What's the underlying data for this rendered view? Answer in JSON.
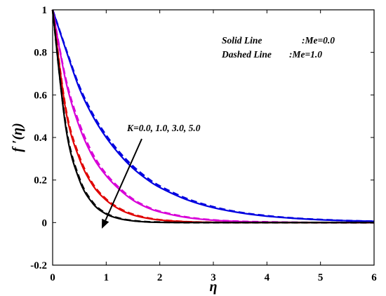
{
  "chart_data": {
    "type": "line",
    "xlabel": "η",
    "ylabel": "f ′(η)",
    "xlim": [
      0,
      6
    ],
    "ylim": [
      -0.2,
      1
    ],
    "xticks": [
      "0",
      "1",
      "2",
      "3",
      "4",
      "5",
      "6"
    ],
    "yticks": [
      "-0.2",
      "0",
      "0.2",
      "0.4",
      "0.6",
      "0.8",
      "1"
    ],
    "grid": false,
    "legend_lines": [
      {
        "label": "Solid Line",
        "value": ":Me=0.0"
      },
      {
        "label": "Dashed Line",
        "value": ":Me=1.0"
      }
    ],
    "arrow_label": "K=0.0, 1.0, 3.0, 5.0",
    "x": [
      0,
      0.25,
      0.5,
      0.75,
      1,
      1.25,
      1.5,
      1.75,
      2,
      2.5,
      3,
      3.5,
      4,
      4.5,
      5,
      5.5,
      6
    ],
    "series": [
      {
        "color": "#0000e0",
        "style": "solid",
        "values": [
          1,
          0.81,
          0.63,
          0.5,
          0.4,
          0.32,
          0.255,
          0.205,
          0.165,
          0.108,
          0.07,
          0.046,
          0.03,
          0.02,
          0.013,
          0.009,
          0.006
        ]
      },
      {
        "color": "#0000e0",
        "style": "dashed",
        "values": [
          1,
          0.815,
          0.64,
          0.51,
          0.41,
          0.33,
          0.265,
          0.213,
          0.172,
          0.113,
          0.074,
          0.048,
          0.032,
          0.021,
          0.014,
          0.009,
          0.006
        ]
      },
      {
        "color": "#d800d8",
        "style": "solid",
        "values": [
          1,
          0.66,
          0.45,
          0.31,
          0.22,
          0.155,
          0.105,
          0.072,
          0.05,
          0.024,
          0.011,
          0.005,
          0.002,
          0.001,
          0,
          0,
          0
        ]
      },
      {
        "color": "#d800d8",
        "style": "dashed",
        "values": [
          1,
          0.67,
          0.465,
          0.322,
          0.228,
          0.162,
          0.11,
          0.076,
          0.053,
          0.026,
          0.012,
          0.006,
          0.003,
          0.001,
          0,
          0,
          0
        ]
      },
      {
        "color": "#e00000",
        "style": "solid",
        "values": [
          1,
          0.52,
          0.3,
          0.175,
          0.105,
          0.062,
          0.036,
          0.021,
          0.012,
          0.004,
          0.001,
          0,
          0,
          0,
          0,
          0,
          0
        ]
      },
      {
        "color": "#e00000",
        "style": "dashed",
        "values": [
          1,
          0.53,
          0.31,
          0.182,
          0.11,
          0.066,
          0.039,
          0.023,
          0.013,
          0.004,
          0.001,
          0,
          0,
          0,
          0,
          0,
          0
        ]
      },
      {
        "color": "#000000",
        "style": "solid",
        "values": [
          1,
          0.44,
          0.2,
          0.09,
          0.04,
          0.018,
          0.008,
          0.003,
          0.001,
          0,
          0,
          0,
          0,
          0,
          0,
          0,
          0
        ]
      },
      {
        "color": "#000000",
        "style": "dashed",
        "values": [
          1,
          0.45,
          0.208,
          0.095,
          0.043,
          0.02,
          0.009,
          0.004,
          0.002,
          0,
          0,
          0,
          0,
          0,
          0,
          0,
          0
        ]
      }
    ]
  }
}
